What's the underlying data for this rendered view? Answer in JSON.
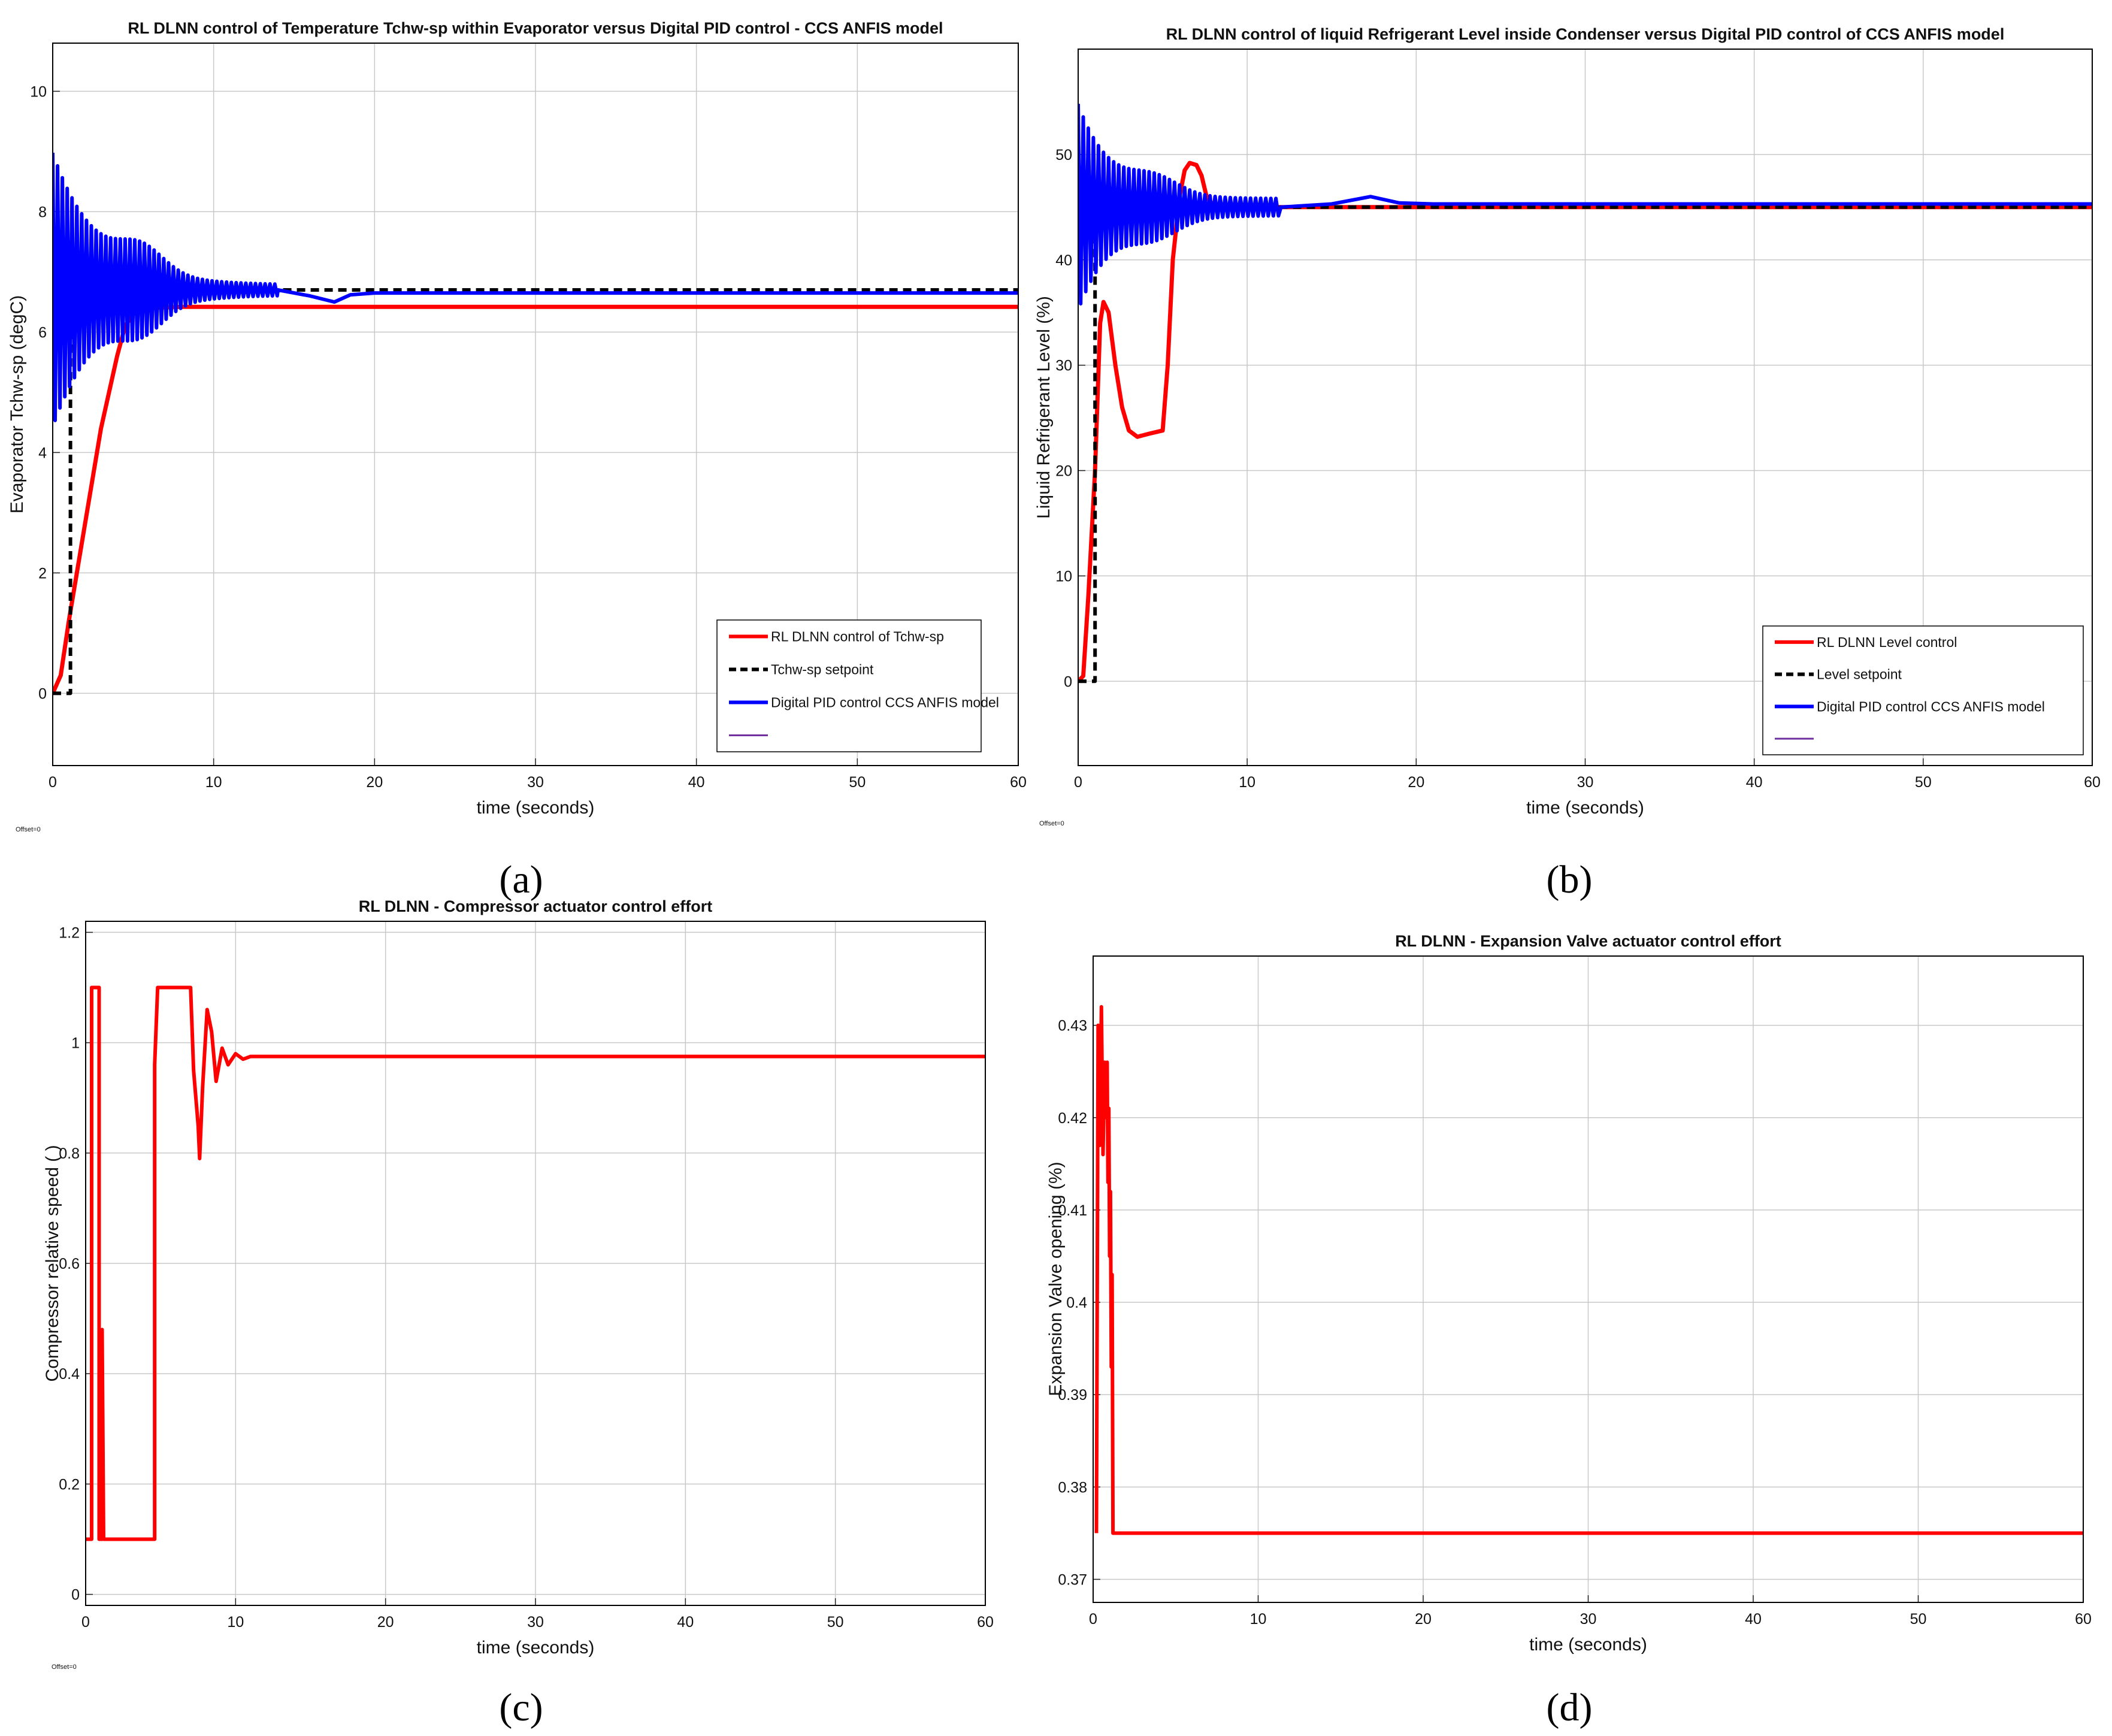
{
  "panels": [
    {
      "tag": "(a)",
      "offset": "Offset=0",
      "chart_data": {
        "type": "line",
        "title": "RL DLNN control of Temperature Tchw-sp  within Evaporator versus Digital PID control - CCS ANFIS model",
        "xlabel": "time (seconds)",
        "ylabel": "Evaporator Tchw-sp (degC)",
        "xlim": [
          0,
          60
        ],
        "ylim": [
          -1.2,
          10.8
        ],
        "xticks": [
          0,
          10,
          20,
          30,
          40,
          50,
          60
        ],
        "yticks": [
          0,
          2,
          4,
          6,
          8,
          10
        ],
        "grid": true,
        "legend_position": "bottom-right",
        "series": [
          {
            "name": "RL DLNN  control of Tchw-sp",
            "color": "#ff0000",
            "dash": "",
            "width": 7,
            "points": [
              [
                0,
                0
              ],
              [
                0.5,
                0.3
              ],
              [
                1,
                1.2
              ],
              [
                2,
                2.8
              ],
              [
                3,
                4.4
              ],
              [
                4,
                5.6
              ],
              [
                4.5,
                6.1
              ],
              [
                5,
                6.3
              ],
              [
                6,
                6.4
              ],
              [
                8,
                6.42
              ],
              [
                10,
                6.42
              ],
              [
                60,
                6.42
              ]
            ]
          },
          {
            "name": "Tchw-sp setpoint",
            "color": "#000000",
            "dash": "14,9",
            "width": 6,
            "points": [
              [
                0,
                0
              ],
              [
                1.1,
                0
              ],
              [
                1.1,
                6.7
              ],
              [
                60,
                6.7
              ]
            ]
          },
          {
            "name": "Digital PID control  CCS ANFIS model",
            "color": "#0000ff",
            "dash": "",
            "width": 6,
            "osc": {
              "start": 0,
              "end": 14,
              "center": 6.7,
              "a0": 2.2,
              "decay": 0.35,
              "period": 0.3,
              "bumpAt": 5.5,
              "bumpAmp": 0.4,
              "bumpWidth": 4
            },
            "points": [
              [
                14,
                6.7
              ],
              [
                16,
                6.6
              ],
              [
                17.5,
                6.5
              ],
              [
                18.5,
                6.62
              ],
              [
                20,
                6.65
              ],
              [
                60,
                6.65
              ]
            ]
          },
          {
            "name": "",
            "color": "#7030a0",
            "dash": "",
            "width": 3,
            "points": []
          }
        ]
      }
    },
    {
      "tag": "(b)",
      "offset": "Offset=0",
      "chart_data": {
        "type": "line",
        "title": "RL DLNN control of liquid Refrigerant Level inside Condenser versus Digital PID control of CCS ANFIS model",
        "xlabel": "time (seconds)",
        "ylabel": "Liquid Refrigerant Level (%)",
        "xlim": [
          0,
          60
        ],
        "ylim": [
          -8,
          60
        ],
        "xticks": [
          0,
          10,
          20,
          30,
          40,
          50,
          60
        ],
        "yticks": [
          0,
          10,
          20,
          30,
          40,
          50
        ],
        "grid": true,
        "legend_position": "bottom-right",
        "series": [
          {
            "name": "RL DLNN Level control",
            "color": "#ff0000",
            "dash": "",
            "width": 7,
            "points": [
              [
                0,
                0
              ],
              [
                0.3,
                0.5
              ],
              [
                0.6,
                8
              ],
              [
                1,
                20
              ],
              [
                1.3,
                34
              ],
              [
                1.5,
                36
              ],
              [
                1.8,
                35
              ],
              [
                2.2,
                30
              ],
              [
                2.6,
                26
              ],
              [
                3,
                23.8
              ],
              [
                3.5,
                23.2
              ],
              [
                4.2,
                23.5
              ],
              [
                5,
                23.8
              ],
              [
                5.3,
                30
              ],
              [
                5.6,
                40
              ],
              [
                6,
                46
              ],
              [
                6.3,
                48.5
              ],
              [
                6.6,
                49.2
              ],
              [
                7,
                49
              ],
              [
                7.3,
                48
              ],
              [
                7.6,
                46
              ],
              [
                8,
                45.2
              ],
              [
                10,
                45
              ],
              [
                60,
                45
              ]
            ]
          },
          {
            "name": "Level setpoint",
            "color": "#000000",
            "dash": "14,9",
            "width": 6,
            "points": [
              [
                0,
                0
              ],
              [
                1,
                0
              ],
              [
                1,
                45
              ],
              [
                60,
                45
              ]
            ]
          },
          {
            "name": "Digital PID control CCS ANFIS model",
            "color": "#0000ff",
            "dash": "",
            "width": 6,
            "osc": {
              "start": 0,
              "end": 12,
              "center": 45,
              "a0": 9,
              "decay": 0.5,
              "period": 0.3,
              "bumpAt": 4.5,
              "bumpAmp": 1.5,
              "bumpWidth": 4
            },
            "points": [
              [
                12,
                45
              ],
              [
                15,
                45.3
              ],
              [
                17.3,
                46
              ],
              [
                19,
                45.4
              ],
              [
                21,
                45.3
              ],
              [
                60,
                45.3
              ]
            ]
          },
          {
            "name": "",
            "color": "#7030a0",
            "dash": "",
            "width": 3,
            "points": []
          }
        ]
      }
    },
    {
      "tag": "(c)",
      "offset": "Offset=0",
      "chart_data": {
        "type": "line",
        "title": "RL DLNN  - Compressor actuator control effort",
        "xlabel": "time (seconds)",
        "ylabel": "Compressor relative speed ( )",
        "xlim": [
          0,
          60
        ],
        "ylim": [
          -0.02,
          1.22
        ],
        "xticks": [
          0,
          10,
          20,
          30,
          40,
          50,
          60
        ],
        "yticks": [
          0,
          0.2,
          0.4,
          0.6,
          0.8,
          1,
          1.2
        ],
        "grid": true,
        "series": [
          {
            "name": "",
            "color": "#ff0000",
            "dash": "",
            "width": 6,
            "points": [
              [
                0,
                0.1
              ],
              [
                0.4,
                0.1
              ],
              [
                0.4,
                1.1
              ],
              [
                0.9,
                1.1
              ],
              [
                0.9,
                0.1
              ],
              [
                1.1,
                0.1
              ],
              [
                1.1,
                0.48
              ],
              [
                1.2,
                0.1
              ],
              [
                4.6,
                0.1
              ],
              [
                4.6,
                0.96
              ],
              [
                4.8,
                1.1
              ],
              [
                7,
                1.1
              ],
              [
                7.2,
                0.95
              ],
              [
                7.5,
                0.85
              ],
              [
                7.6,
                0.79
              ],
              [
                7.8,
                0.92
              ],
              [
                8.1,
                1.06
              ],
              [
                8.4,
                1.02
              ],
              [
                8.7,
                0.93
              ],
              [
                9.1,
                0.99
              ],
              [
                9.5,
                0.96
              ],
              [
                10,
                0.98
              ],
              [
                10.5,
                0.97
              ],
              [
                11,
                0.975
              ],
              [
                60,
                0.975
              ]
            ]
          }
        ]
      }
    },
    {
      "tag": "(d)",
      "chart_data": {
        "type": "line",
        "title": "RL DLNN - Expansion Valve actuator control effort",
        "xlabel": "time (seconds)",
        "ylabel": "Expansion Valve opening (%)",
        "xlim": [
          0,
          60
        ],
        "ylim": [
          0.3675,
          0.4375
        ],
        "xticks": [
          0,
          10,
          20,
          30,
          40,
          50,
          60
        ],
        "yticks": [
          0.37,
          0.38,
          0.39,
          0.4,
          0.41,
          0.42,
          0.43
        ],
        "grid": true,
        "series": [
          {
            "name": "",
            "color": "#ff0000",
            "dash": "",
            "width": 6,
            "points": [
              [
                0.2,
                0.375
              ],
              [
                0.3,
                0.43
              ],
              [
                0.4,
                0.417
              ],
              [
                0.5,
                0.432
              ],
              [
                0.6,
                0.416
              ],
              [
                0.7,
                0.426
              ],
              [
                0.8,
                0.42
              ],
              [
                0.85,
                0.426
              ],
              [
                0.9,
                0.413
              ],
              [
                0.95,
                0.421
              ],
              [
                1,
                0.405
              ],
              [
                1.05,
                0.412
              ],
              [
                1.1,
                0.393
              ],
              [
                1.15,
                0.403
              ],
              [
                1.2,
                0.375
              ],
              [
                60,
                0.375
              ]
            ]
          }
        ]
      }
    }
  ]
}
